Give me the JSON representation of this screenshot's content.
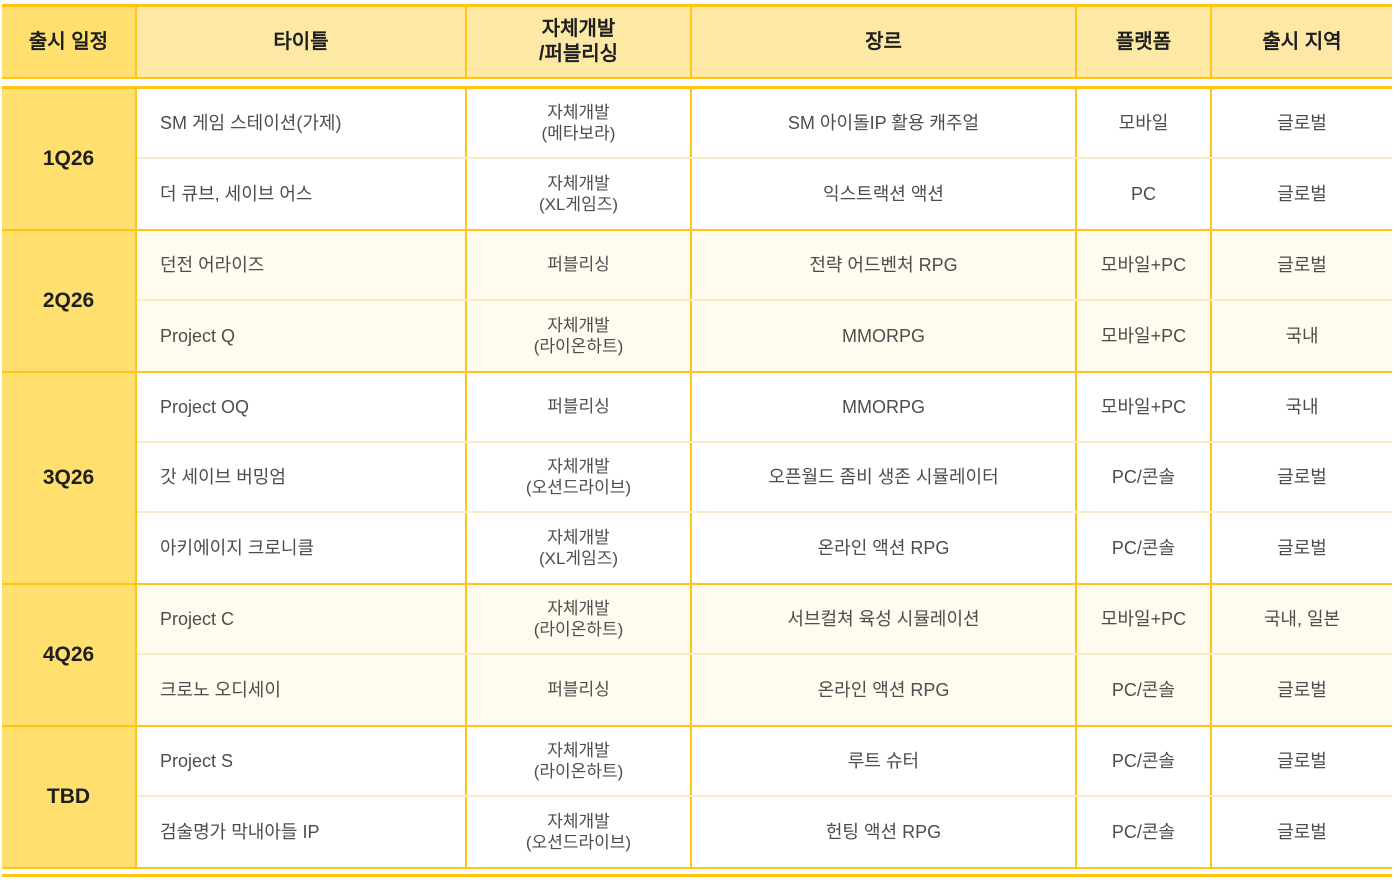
{
  "colors": {
    "gold_border": "#FFC414",
    "quarter_cell_fill": "#FFE06E",
    "header_cell_fill": "#FDE8A5",
    "even_group_fill": "#FFFBEF",
    "row_separator": "#FAEBC8",
    "body_text": "#4D4D4D",
    "heading_text": "#1F1F1F"
  },
  "table": {
    "headers": [
      "출시 일정",
      "타이틀",
      "자체개발\n/퍼블리싱",
      "장르",
      "플랫폼",
      "출시 지역"
    ],
    "groups": [
      {
        "quarter": "1Q26",
        "rows": [
          {
            "title": "SM 게임 스테이션(가제)",
            "dev": "자체개발\n(메타보라)",
            "genre": "SM 아이돌IP 활용 캐주얼",
            "platform": "모바일",
            "region": "글로벌"
          },
          {
            "title": "더 큐브, 세이브 어스",
            "dev": "자체개발\n(XL게임즈)",
            "genre": "익스트랙션 액션",
            "platform": "PC",
            "region": "글로벌"
          }
        ]
      },
      {
        "quarter": "2Q26",
        "rows": [
          {
            "title": "던전 어라이즈",
            "dev": "퍼블리싱",
            "genre": "전략 어드벤처 RPG",
            "platform": "모바일+PC",
            "region": "글로벌"
          },
          {
            "title": "Project Q",
            "dev": "자체개발\n(라이온하트)",
            "genre": "MMORPG",
            "platform": "모바일+PC",
            "region": "국내"
          }
        ]
      },
      {
        "quarter": "3Q26",
        "rows": [
          {
            "title": "Project OQ",
            "dev": "퍼블리싱",
            "genre": "MMORPG",
            "platform": "모바일+PC",
            "region": "국내"
          },
          {
            "title": "갓 세이브 버밍엄",
            "dev": "자체개발\n(오션드라이브)",
            "genre": "오픈월드 좀비 생존 시뮬레이터",
            "platform": "PC/콘솔",
            "region": "글로벌"
          },
          {
            "title": "아키에이지 크로니클",
            "dev": "자체개발\n(XL게임즈)",
            "genre": "온라인 액션 RPG",
            "platform": "PC/콘솔",
            "region": "글로벌"
          }
        ]
      },
      {
        "quarter": "4Q26",
        "rows": [
          {
            "title": "Project C",
            "dev": "자체개발\n(라이온하트)",
            "genre": "서브컬쳐 육성 시뮬레이션",
            "platform": "모바일+PC",
            "region": "국내, 일본"
          },
          {
            "title": "크로노 오디세이",
            "dev": "퍼블리싱",
            "genre": "온라인 액션 RPG",
            "platform": "PC/콘솔",
            "region": "글로벌"
          }
        ]
      },
      {
        "quarter": "TBD",
        "rows": [
          {
            "title": "Project S",
            "dev": "자체개발\n(라이온하트)",
            "genre": "루트 슈터",
            "platform": "PC/콘솔",
            "region": "글로벌"
          },
          {
            "title": "검술명가 막내아들 IP",
            "dev": "자체개발\n(오션드라이브)",
            "genre": "헌팅 액션 RPG",
            "platform": "PC/콘솔",
            "region": "글로벌"
          }
        ]
      }
    ]
  }
}
